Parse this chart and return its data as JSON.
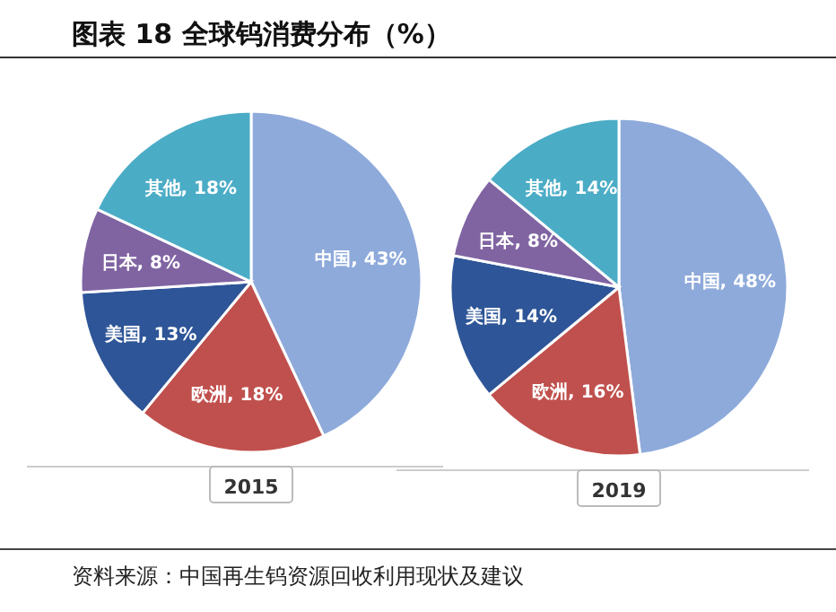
{
  "chart_data": [
    {
      "type": "pie",
      "title": "图表 18  全球钨消费分布（%）",
      "xlabel": "2015",
      "categories": [
        "中国",
        "欧洲",
        "美国",
        "日本",
        "其他"
      ],
      "values": [
        43,
        18,
        13,
        8,
        18
      ],
      "value_labels": [
        "43%",
        "18%",
        "13%",
        "8%",
        "18%"
      ],
      "colors": [
        "#8eaadb",
        "#c0504d",
        "#2e5597",
        "#8064a2",
        "#4bacc6"
      ],
      "annotations": [
        "资料来源：中国再生钨资源回收利用现状及建议"
      ]
    },
    {
      "type": "pie",
      "xlabel": "2019",
      "categories": [
        "中国",
        "欧洲",
        "美国",
        "日本",
        "其他"
      ],
      "values": [
        48,
        16,
        14,
        8,
        14
      ],
      "value_labels": [
        "48%",
        "16%",
        "14%",
        "8%",
        "14%"
      ],
      "colors": [
        "#8eaadb",
        "#c0504d",
        "#2e5597",
        "#8064a2",
        "#4bacc6"
      ]
    }
  ]
}
